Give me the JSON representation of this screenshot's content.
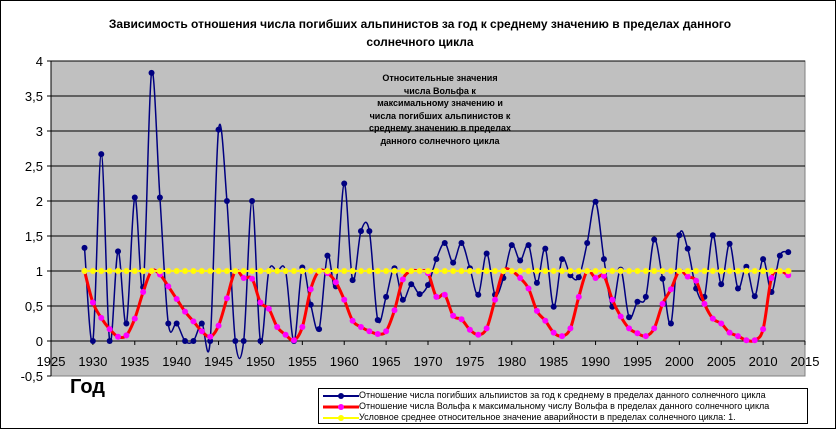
{
  "chart_data": {
    "type": "line",
    "title": "Зависимость отношения числа погибших альпинистов за год к среднему значению в пределах данного солнечного цикла",
    "xlabel": "Год",
    "ylabel": "",
    "xlim": [
      1925,
      2015
    ],
    "ylim": [
      -0.5,
      4
    ],
    "xticks": [
      "1925",
      "1930",
      "1935",
      "1940",
      "1945",
      "1950",
      "1955",
      "1960",
      "1965",
      "1970",
      "1975",
      "1980",
      "1985",
      "1990",
      "1995",
      "2000",
      "2005",
      "2010",
      "2015"
    ],
    "yticks": [
      "-0,5",
      "0",
      "0,5",
      "1",
      "1,5",
      "2",
      "2,5",
      "3",
      "3,5",
      "4"
    ],
    "grid": "horizontal",
    "legend_position": "bottom-right",
    "annotation": [
      "Относительные значения",
      "числа Вольфа к",
      "максимальному значению и",
      "числа погибших альпинистов к",
      "среднему значению в пределах",
      "данного солнечного цикла"
    ],
    "x_start": 1929,
    "series": [
      {
        "name": "Отношение числа погибших альпиистов за год к среднему в пределах данного солнечного цикла",
        "color": "#000080",
        "marker": "#000080",
        "values": [
          1.33,
          0,
          2.67,
          0,
          1.28,
          0.25,
          2.05,
          0.77,
          3.83,
          2.05,
          0.25,
          0.25,
          0,
          0,
          0.25,
          0,
          3.02,
          2.0,
          0,
          0,
          2.0,
          0,
          1,
          1,
          1,
          0,
          1.05,
          0.52,
          0.17,
          1.22,
          0.78,
          2.25,
          0.87,
          1.57,
          1.57,
          0.3,
          0.63,
          1.04,
          0.59,
          0.81,
          0.67,
          0.8,
          1.17,
          1.4,
          1.12,
          1.4,
          1.04,
          0.66,
          1.25,
          0.66,
          0.9,
          1.37,
          1.15,
          1.37,
          0.83,
          1.32,
          0.49,
          1.17,
          0.94,
          0.91,
          1.4,
          1.99,
          1.17,
          0.49,
          1.02,
          0.34,
          0.56,
          0.63,
          1.45,
          0.89,
          0.25,
          1.51,
          1.32,
          0.75,
          0.63,
          1.51,
          0.81,
          1.39,
          0.75,
          1.06,
          0.64,
          1.17,
          0.7,
          1.22,
          1.27
        ]
      },
      {
        "name": "Отношение числа Вольфа к максимальному числу Вольфа в пределах данного солнечного цикла",
        "color": "#ff0000",
        "marker": "#ff00ff",
        "values": [
          1.0,
          0.55,
          0.33,
          0.17,
          0.06,
          0.08,
          0.32,
          0.7,
          1.0,
          0.95,
          0.78,
          0.6,
          0.42,
          0.28,
          0.14,
          0.06,
          0.22,
          0.61,
          1.0,
          0.9,
          0.89,
          0.55,
          0.46,
          0.2,
          0.09,
          0.01,
          0.2,
          0.74,
          1.0,
          0.97,
          0.84,
          0.59,
          0.29,
          0.2,
          0.14,
          0.1,
          0.14,
          0.44,
          0.88,
          1.0,
          1.0,
          0.97,
          0.63,
          0.66,
          0.36,
          0.31,
          0.16,
          0.09,
          0.18,
          0.59,
          1.0,
          1.0,
          0.9,
          0.75,
          0.43,
          0.29,
          0.12,
          0.07,
          0.18,
          0.63,
          1.0,
          0.9,
          0.93,
          0.59,
          0.35,
          0.18,
          0.11,
          0.07,
          0.18,
          0.53,
          0.74,
          1.0,
          0.92,
          0.86,
          0.53,
          0.32,
          0.25,
          0.12,
          0.07,
          0.01,
          0.01,
          0.17,
          0.9,
          1.0,
          0.94
        ]
      },
      {
        "name": "Условное среднее относительное значение аварийности в пределах солнечного цикла: 1.",
        "color": "#ffff00",
        "marker": "#ffff00",
        "values": [
          1,
          1,
          1,
          1,
          1,
          1,
          1,
          1,
          1,
          1,
          1,
          1,
          1,
          1,
          1,
          1,
          1,
          1,
          1,
          1,
          1,
          1,
          1,
          1,
          1,
          1,
          1,
          1,
          1,
          1,
          1,
          1,
          1,
          1,
          1,
          1,
          1,
          1,
          1,
          1,
          1,
          1,
          1,
          1,
          1,
          1,
          1,
          1,
          1,
          1,
          1,
          1,
          1,
          1,
          1,
          1,
          1,
          1,
          1,
          1,
          1,
          1,
          1,
          1,
          1,
          1,
          1,
          1,
          1,
          1,
          1,
          1,
          1,
          1,
          1,
          1,
          1,
          1,
          1,
          1,
          1,
          1,
          1,
          1,
          1
        ]
      }
    ]
  },
  "colors": {
    "plot_bg": "#c0c0c0"
  }
}
